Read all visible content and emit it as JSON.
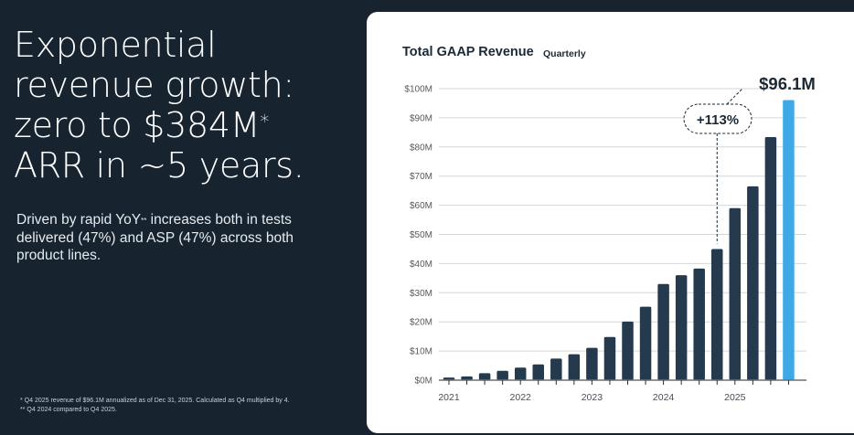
{
  "left_panel": {
    "headline_lines": [
      "Exponential",
      "revenue growth:",
      "zero to $384M",
      "ARR in ~5 years."
    ],
    "headline_footnote_mark": "*",
    "subtext_before": "Driven by rapid YoY",
    "subtext_mark": "**",
    "subtext_after": " increases both in tests delivered (47%) and ASP (47%) across both product lines.",
    "footnotes": [
      "*  Q4 2025 revenue of $96.1M annualized as of Dec 31, 2025. Calculated as Q4 multiplied by 4.",
      "** Q4 2024 compared to Q4 2025."
    ]
  },
  "colors": {
    "background": "#17232f",
    "bar": "#253a4d",
    "highlight_bar": "#3fa9e8",
    "grid": "#d4d6d9",
    "axis": "#6b6f74"
  },
  "chart_data": {
    "type": "bar",
    "title": "Total GAAP Revenue",
    "subtitle": "Quarterly",
    "xlabel": "",
    "ylabel": "",
    "ylim": [
      0,
      100
    ],
    "y_unit": "$M",
    "y_ticks": [
      0,
      10,
      20,
      30,
      40,
      50,
      60,
      70,
      80,
      90,
      100
    ],
    "y_tick_labels": [
      "$0M",
      "$10M",
      "$20M",
      "$30M",
      "$40M",
      "$50M",
      "$60M",
      "$70M",
      "$80M",
      "$90M",
      "$100M"
    ],
    "grid": true,
    "legend": "none",
    "categories": [
      "Q1 2021",
      "Q2 2021",
      "Q3 2021",
      "Q4 2021",
      "Q1 2022",
      "Q2 2022",
      "Q3 2022",
      "Q4 2022",
      "Q1 2023",
      "Q2 2023",
      "Q3 2023",
      "Q4 2023",
      "Q1 2024",
      "Q2 2024",
      "Q3 2024",
      "Q4 2024",
      "Q1 2025",
      "Q2 2025",
      "Q3 2025",
      "Q4 2025"
    ],
    "x_tick_labels": [
      {
        "index": 0,
        "label": "2021"
      },
      {
        "index": 4,
        "label": "2022"
      },
      {
        "index": 8,
        "label": "2023"
      },
      {
        "index": 12,
        "label": "2024"
      },
      {
        "index": 16,
        "label": "2025"
      }
    ],
    "values": [
      0.9,
      1.3,
      2.4,
      3.2,
      4.3,
      5.4,
      7.4,
      8.9,
      11.1,
      14.8,
      20.1,
      25.2,
      33.0,
      36.0,
      38.3,
      45.0,
      59.0,
      66.5,
      83.4,
      96.1
    ],
    "highlight_index": 19,
    "annotations": [
      {
        "type": "value_label",
        "index": 19,
        "text": "$96.1M"
      },
      {
        "type": "growth_bubble",
        "from_index": 15,
        "to_index": 19,
        "text": "+113%"
      }
    ]
  }
}
